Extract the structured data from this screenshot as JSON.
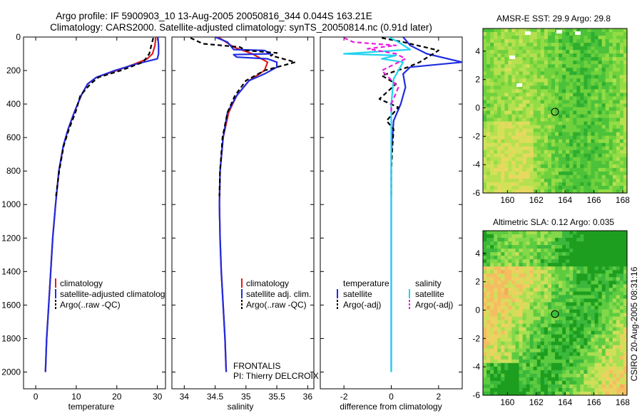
{
  "header": {
    "line1": "Argo profile: IF 5900903_10 13-Aug-2005 20050816_344 0.044S 163.21E",
    "line2": "Climatology: CARS2000. Satellite-adjusted climatology: synTS_20050814.nc (0.91d later)"
  },
  "side_stamp": "CSIRO 20-Aug-2005 08:31:16",
  "colors": {
    "climatology": "#e31a1c",
    "satellite": "#1f2de0",
    "argo": "#000000",
    "cyan": "#22d3ee",
    "magenta": "#e81ce0"
  },
  "chart_data": [
    {
      "type": "line",
      "id": "temperature",
      "xlabel": "temperature",
      "ylabel": "",
      "xlim": [
        -3,
        32
      ],
      "ylim": [
        2100,
        0
      ],
      "xticks": [
        0,
        10,
        20,
        30
      ],
      "yticks": [
        0,
        200,
        400,
        600,
        800,
        1000,
        1200,
        1400,
        1600,
        1800,
        2000
      ],
      "legend": [
        "climatology",
        "satellite-adjusted climatology",
        "Argo(..raw -QC)"
      ],
      "series": [
        {
          "name": "climatology",
          "color": "#e31a1c",
          "dash": "",
          "points": [
            [
              29.6,
              0
            ],
            [
              29.4,
              50
            ],
            [
              28.8,
              100
            ],
            [
              27.5,
              130
            ],
            [
              24.5,
              160
            ],
            [
              20,
              200
            ],
            [
              15,
              240
            ],
            [
              12.8,
              280
            ],
            [
              11.2,
              350
            ],
            [
              9.5,
              450
            ],
            [
              8,
              550
            ],
            [
              6.8,
              650
            ],
            [
              5.7,
              800
            ],
            [
              4.9,
              1000
            ],
            [
              4.2,
              1200
            ],
            [
              3.7,
              1400
            ],
            [
              3.2,
              1600
            ],
            [
              2.7,
              1800
            ],
            [
              2.4,
              2000
            ]
          ]
        },
        {
          "name": "satellite-adjusted climatology",
          "color": "#1f2de0",
          "dash": "",
          "points": [
            [
              30.1,
              0
            ],
            [
              30.3,
              50
            ],
            [
              30.3,
              100
            ],
            [
              30.0,
              130
            ],
            [
              25,
              160
            ],
            [
              19.5,
              200
            ],
            [
              15,
              240
            ],
            [
              12.8,
              280
            ],
            [
              11.2,
              350
            ],
            [
              9.5,
              450
            ],
            [
              8,
              550
            ],
            [
              6.8,
              650
            ],
            [
              5.7,
              800
            ],
            [
              4.9,
              1000
            ],
            [
              4.2,
              1200
            ],
            [
              3.7,
              1400
            ],
            [
              3.2,
              1600
            ],
            [
              2.7,
              1800
            ],
            [
              2.4,
              2000
            ]
          ]
        },
        {
          "name": "Argo(..raw -QC)",
          "color": "#000000",
          "dash": "6,4",
          "points": [
            [
              29.0,
              5
            ],
            [
              28.5,
              50
            ],
            [
              28,
              100
            ],
            [
              26.5,
              150
            ],
            [
              21,
              200
            ],
            [
              15.5,
              240
            ],
            [
              13.5,
              280
            ],
            [
              11,
              350
            ],
            [
              9.8,
              450
            ],
            [
              8.2,
              550
            ],
            [
              6.9,
              650
            ],
            [
              5.8,
              800
            ],
            [
              5,
              950
            ]
          ]
        }
      ]
    },
    {
      "type": "line",
      "id": "salinity",
      "xlabel": "salinity",
      "ylabel": "",
      "xlim": [
        33.8,
        36.1
      ],
      "ylim": [
        2100,
        0
      ],
      "xticks": [
        34,
        34.5,
        35,
        35.5,
        36
      ],
      "legend": [
        "climatology",
        "satellite adj. clim.",
        "Argo(..raw -QC)"
      ],
      "annotation": [
        "FRONTALIS",
        "PI: Thierry DELCROIX"
      ],
      "series": [
        {
          "name": "climatology",
          "color": "#e31a1c",
          "dash": "",
          "points": [
            [
              34.55,
              0
            ],
            [
              34.8,
              60
            ],
            [
              35.1,
              100
            ],
            [
              35.35,
              150
            ],
            [
              35.3,
              200
            ],
            [
              35.05,
              260
            ],
            [
              34.85,
              350
            ],
            [
              34.72,
              450
            ],
            [
              34.63,
              600
            ],
            [
              34.58,
              800
            ],
            [
              34.57,
              1000
            ],
            [
              34.58,
              1200
            ],
            [
              34.6,
              1400
            ],
            [
              34.63,
              1600
            ],
            [
              34.66,
              1800
            ],
            [
              34.68,
              2000
            ]
          ]
        },
        {
          "name": "satellite adj. clim.",
          "color": "#1f2de0",
          "dash": "",
          "points": [
            [
              34.5,
              0
            ],
            [
              34.7,
              30
            ],
            [
              34.8,
              75
            ],
            [
              35.3,
              80
            ],
            [
              35.4,
              100
            ],
            [
              34.8,
              105
            ],
            [
              34.85,
              120
            ],
            [
              35.35,
              130
            ],
            [
              35.5,
              150
            ],
            [
              35.5,
              180
            ],
            [
              35.3,
              220
            ],
            [
              35.05,
              260
            ],
            [
              34.85,
              350
            ],
            [
              34.7,
              450
            ],
            [
              34.63,
              600
            ],
            [
              34.58,
              800
            ],
            [
              34.57,
              1000
            ],
            [
              34.58,
              1200
            ],
            [
              34.6,
              1400
            ],
            [
              34.63,
              1600
            ],
            [
              34.66,
              1800
            ],
            [
              34.68,
              2000
            ]
          ]
        },
        {
          "name": "Argo(..raw -QC)",
          "color": "#000000",
          "dash": "6,4",
          "points": [
            [
              34.1,
              5
            ],
            [
              34.3,
              40
            ],
            [
              34.9,
              60
            ],
            [
              35.0,
              80
            ],
            [
              35.5,
              95
            ],
            [
              35.4,
              110
            ],
            [
              35.8,
              150
            ],
            [
              35.3,
              200
            ],
            [
              35.0,
              260
            ],
            [
              34.82,
              350
            ],
            [
              34.7,
              450
            ],
            [
              34.62,
              600
            ],
            [
              34.58,
              800
            ],
            [
              34.57,
              950
            ]
          ]
        }
      ]
    },
    {
      "type": "line",
      "id": "difference",
      "xlabel": "difference from climatology",
      "ylabel": "",
      "xlim": [
        -3,
        3
      ],
      "ylim": [
        2100,
        0
      ],
      "xticks": [
        -2,
        0,
        2
      ],
      "legend_groups": [
        {
          "title": "temperature",
          "items": [
            "satellite",
            "Argo(-adj)"
          ]
        },
        {
          "title": "salinity",
          "items": [
            "satellite",
            "Argo(-adj)"
          ]
        }
      ],
      "series": [
        {
          "name": "satellite",
          "group": "temperature",
          "color": "#1f2de0",
          "dash": "",
          "points": [
            [
              0.5,
              0
            ],
            [
              0.8,
              50
            ],
            [
              1.5,
              100
            ],
            [
              3.0,
              150
            ],
            [
              0.8,
              180
            ],
            [
              0.5,
              220
            ],
            [
              0.6,
              300
            ],
            [
              0.4,
              400
            ],
            [
              0.1,
              500
            ],
            [
              0.05,
              600
            ],
            [
              0,
              700
            ],
            [
              0,
              2000
            ]
          ]
        },
        {
          "name": "Argo(-adj)",
          "group": "temperature",
          "color": "#000000",
          "dash": "6,4",
          "points": [
            [
              -0.4,
              5
            ],
            [
              0.5,
              30
            ],
            [
              2.0,
              80
            ],
            [
              1.2,
              150
            ],
            [
              0.7,
              180
            ],
            [
              -0.4,
              230
            ],
            [
              0.2,
              280
            ],
            [
              -0.5,
              370
            ],
            [
              0.3,
              420
            ],
            [
              -0.2,
              500
            ],
            [
              0.1,
              550
            ],
            [
              0.05,
              650
            ],
            [
              0,
              800
            ],
            [
              0,
              950
            ]
          ]
        },
        {
          "name": "satellite",
          "group": "salinity",
          "color": "#22d3ee",
          "dash": "",
          "points": [
            [
              -0.1,
              0
            ],
            [
              0.3,
              30
            ],
            [
              0.8,
              75
            ],
            [
              -2.0,
              100
            ],
            [
              0.2,
              110
            ],
            [
              -0.4,
              130
            ],
            [
              0.5,
              150
            ],
            [
              0.1,
              250
            ],
            [
              0,
              400
            ],
            [
              0,
              2000
            ]
          ]
        },
        {
          "name": "Argo(-adj)",
          "group": "salinity",
          "color": "#e81ce0",
          "dash": "6,4",
          "points": [
            [
              -2.0,
              5
            ],
            [
              -1.6,
              30
            ],
            [
              0.2,
              50
            ],
            [
              -1.0,
              70
            ],
            [
              0.2,
              100
            ],
            [
              0.6,
              130
            ],
            [
              -0.4,
              200
            ],
            [
              0.3,
              300
            ],
            [
              0,
              400
            ],
            [
              0,
              450
            ]
          ]
        }
      ]
    },
    {
      "type": "heatmap",
      "id": "sst_map",
      "title": "AMSR-E SST: 29.9 Argo: 29.8",
      "xlim": [
        158.3,
        168.3
      ],
      "ylim": [
        -6,
        5.6
      ],
      "xticks": [
        160,
        162,
        164,
        166,
        168
      ],
      "yticks": [
        4,
        2,
        0,
        -2,
        -4,
        -6
      ],
      "marker": {
        "lon": 163.21,
        "lat": -0.044
      }
    },
    {
      "type": "heatmap",
      "id": "sla_map",
      "title": "Altimetric SLA: 0.12 Argo: 0.035",
      "xlim": [
        158.3,
        168.3
      ],
      "ylim": [
        -6,
        5.6
      ],
      "xticks": [
        160,
        162,
        164,
        166,
        168
      ],
      "yticks": [
        4,
        2,
        0,
        -2,
        -4,
        -6
      ],
      "marker": {
        "lon": 163.21,
        "lat": -0.044
      }
    }
  ]
}
